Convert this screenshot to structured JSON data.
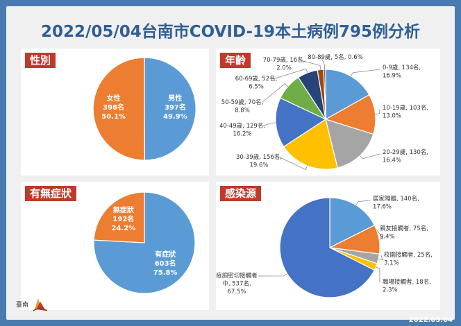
{
  "title": "2022/05/04台南市COVID-19本土病例795例分析",
  "date": "2022.05.04",
  "logo": {
    "text": "臺南"
  },
  "colors": {
    "blue": "#5b9bd5",
    "orange": "#ed7d31",
    "gray": "#a5a5a5",
    "yellow": "#ffc000",
    "darkblue": "#4472c4",
    "green": "#70ad47",
    "navy": "#264478",
    "brown": "#9e480e",
    "tag": "#c0392b"
  },
  "chart_data": [
    {
      "type": "pie",
      "title": "性別",
      "slices": [
        {
          "name": "男性",
          "count": "397名",
          "pct": "49.9%",
          "value": 397,
          "color": "#5b9bd5"
        },
        {
          "name": "女性",
          "count": "398名",
          "pct": "50.1%",
          "value": 398,
          "color": "#ed7d31"
        }
      ]
    },
    {
      "type": "pie",
      "title": "年齡",
      "slices": [
        {
          "name": "0-9歲",
          "count": "134名",
          "pct": "16.9%",
          "value": 134,
          "color": "#5b9bd5"
        },
        {
          "name": "10-19歲",
          "count": "103名",
          "pct": "13.0%",
          "value": 103,
          "color": "#ed7d31"
        },
        {
          "name": "20-29歲",
          "count": "130名",
          "pct": "16.4%",
          "value": 130,
          "color": "#a5a5a5"
        },
        {
          "name": "30-39歲",
          "count": "156名",
          "pct": "19.6%",
          "value": 156,
          "color": "#ffc000"
        },
        {
          "name": "40-49歲",
          "count": "129名",
          "pct": "16.2%",
          "value": 129,
          "color": "#4472c4"
        },
        {
          "name": "50-59歲",
          "count": "70名",
          "pct": "8.8%",
          "value": 70,
          "color": "#70ad47"
        },
        {
          "name": "60-69歲",
          "count": "52名",
          "pct": "6.5%",
          "value": 52,
          "color": "#264478"
        },
        {
          "name": "70-79歲",
          "count": "16名",
          "pct": "2.0%",
          "value": 16,
          "color": "#9e480e"
        },
        {
          "name": "80-89歲",
          "count": "5名",
          "pct": "0.6%",
          "value": 5,
          "color": "#636363"
        }
      ]
    },
    {
      "type": "pie",
      "title": "有無症狀",
      "slices": [
        {
          "name": "有症狀",
          "count": "603名",
          "pct": "75.8%",
          "value": 603,
          "color": "#5b9bd5"
        },
        {
          "name": "無症狀",
          "count": "192名",
          "pct": "24.2%",
          "value": 192,
          "color": "#ed7d31"
        }
      ]
    },
    {
      "type": "pie",
      "title": "感染源",
      "slices": [
        {
          "name": "居家隔離",
          "count": "140名",
          "pct": "17.6%",
          "value": 140,
          "color": "#5b9bd5"
        },
        {
          "name": "親友接觸者",
          "count": "75名",
          "pct": "9.4%",
          "value": 75,
          "color": "#ed7d31"
        },
        {
          "name": "校園接觸者",
          "count": "25名",
          "pct": "3.1%",
          "value": 25,
          "color": "#a5a5a5"
        },
        {
          "name": "職場接觸者",
          "count": "18名",
          "pct": "2.3%",
          "value": 18,
          "color": "#ffc000"
        },
        {
          "name": "疫調密切接觸者中",
          "count": "537名",
          "pct": "67.5%",
          "value": 537,
          "color": "#4472c4"
        }
      ]
    }
  ]
}
